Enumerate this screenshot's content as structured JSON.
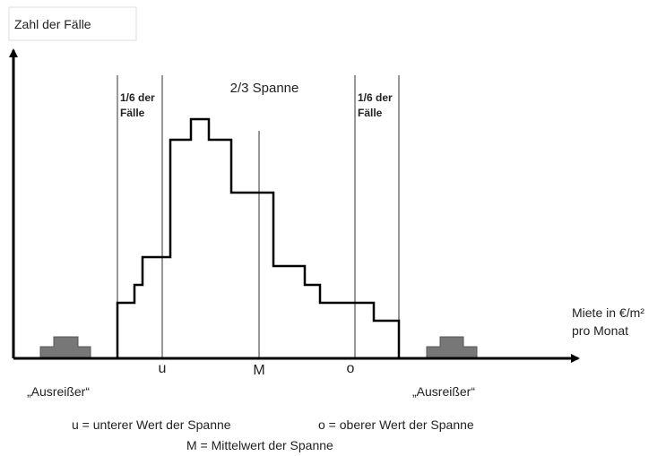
{
  "y_axis_label": "Zahl der Fälle",
  "span_label": "2/3 Spanne",
  "sixth_labels": [
    [
      "1/6 der",
      "Fälle"
    ],
    [
      "1/6 der",
      "Fälle"
    ]
  ],
  "markers": {
    "u": "u",
    "M": "M",
    "o": "o"
  },
  "x_axis_label": [
    "Miete in €/m²",
    "pro Monat"
  ],
  "outliers": [
    "„Ausreißer“",
    "„Ausreißer“"
  ],
  "legend": {
    "u": "u = unterer Wert der Spanne",
    "o": "o = oberer Wert der Spanne",
    "M": "M = Mittelwert der Spanne"
  }
}
